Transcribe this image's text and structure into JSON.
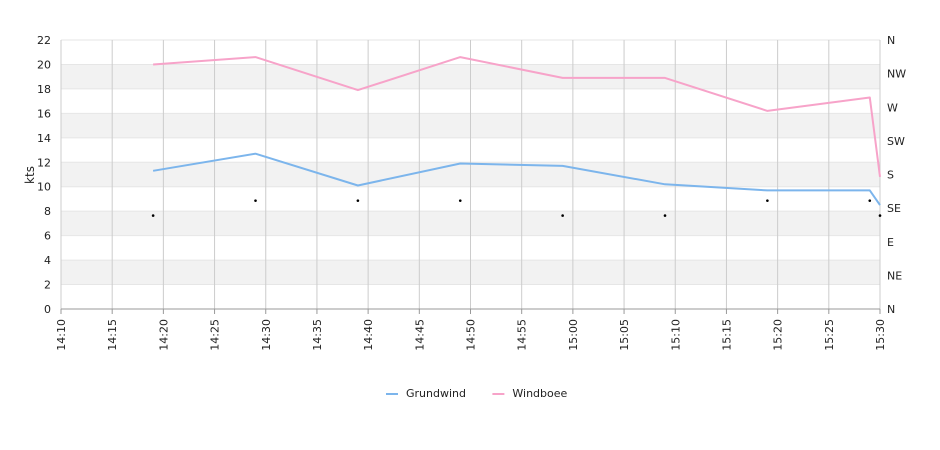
{
  "chart_data": {
    "type": "line",
    "title": "",
    "xlabel": "",
    "ylabel": "kts",
    "xlim": [
      "14:10",
      "15:30"
    ],
    "x_ticks": [
      "14:10",
      "14:15",
      "14:20",
      "14:25",
      "14:30",
      "14:35",
      "14:40",
      "14:45",
      "14:50",
      "14:55",
      "15:00",
      "15:05",
      "15:10",
      "15:15",
      "15:20",
      "15:25",
      "15:30"
    ],
    "ylim": [
      0,
      22
    ],
    "y_ticks": [
      0,
      2,
      4,
      6,
      8,
      10,
      12,
      14,
      16,
      18,
      20,
      22
    ],
    "y2_ticks": [
      "N",
      "NE",
      "E",
      "SE",
      "S",
      "SW",
      "W",
      "NW",
      "N"
    ],
    "grid": true,
    "banded_background": true,
    "legend_position": "bottom",
    "series": [
      {
        "name": "Grundwind",
        "color": "#7cb5ec",
        "axis": "left",
        "points": [
          [
            "14:19",
            11.3
          ],
          [
            "14:29",
            12.7
          ],
          [
            "14:39",
            10.1
          ],
          [
            "14:49",
            11.9
          ],
          [
            "14:59",
            11.7
          ],
          [
            "15:09",
            10.2
          ],
          [
            "15:19",
            9.7
          ],
          [
            "15:29",
            9.7
          ],
          [
            "15:30",
            8.5
          ]
        ]
      },
      {
        "name": "Windboee",
        "color": "#f7a3c9",
        "axis": "left",
        "points": [
          [
            "14:19",
            20.0
          ],
          [
            "14:29",
            20.6
          ],
          [
            "14:39",
            17.9
          ],
          [
            "14:49",
            20.6
          ],
          [
            "14:59",
            18.9
          ],
          [
            "15:09",
            18.9
          ],
          [
            "15:19",
            16.2
          ],
          [
            "15:29",
            17.3
          ],
          [
            "15:30",
            10.8
          ]
        ]
      },
      {
        "kind": "direction-markers",
        "axis": "right",
        "color": "#000000",
        "points": [
          [
            "14:19",
            "SE"
          ],
          [
            "14:29",
            "SE"
          ],
          [
            "14:39",
            "SE"
          ],
          [
            "14:49",
            "SE"
          ],
          [
            "14:59",
            "SE"
          ],
          [
            "15:09",
            "SE"
          ],
          [
            "15:19",
            "SE"
          ],
          [
            "15:29",
            "SE"
          ],
          [
            "15:30",
            "SE"
          ]
        ],
        "offsets_deg": [
          -10,
          10,
          10,
          10,
          -10,
          -10,
          10,
          10,
          -10
        ]
      }
    ]
  }
}
